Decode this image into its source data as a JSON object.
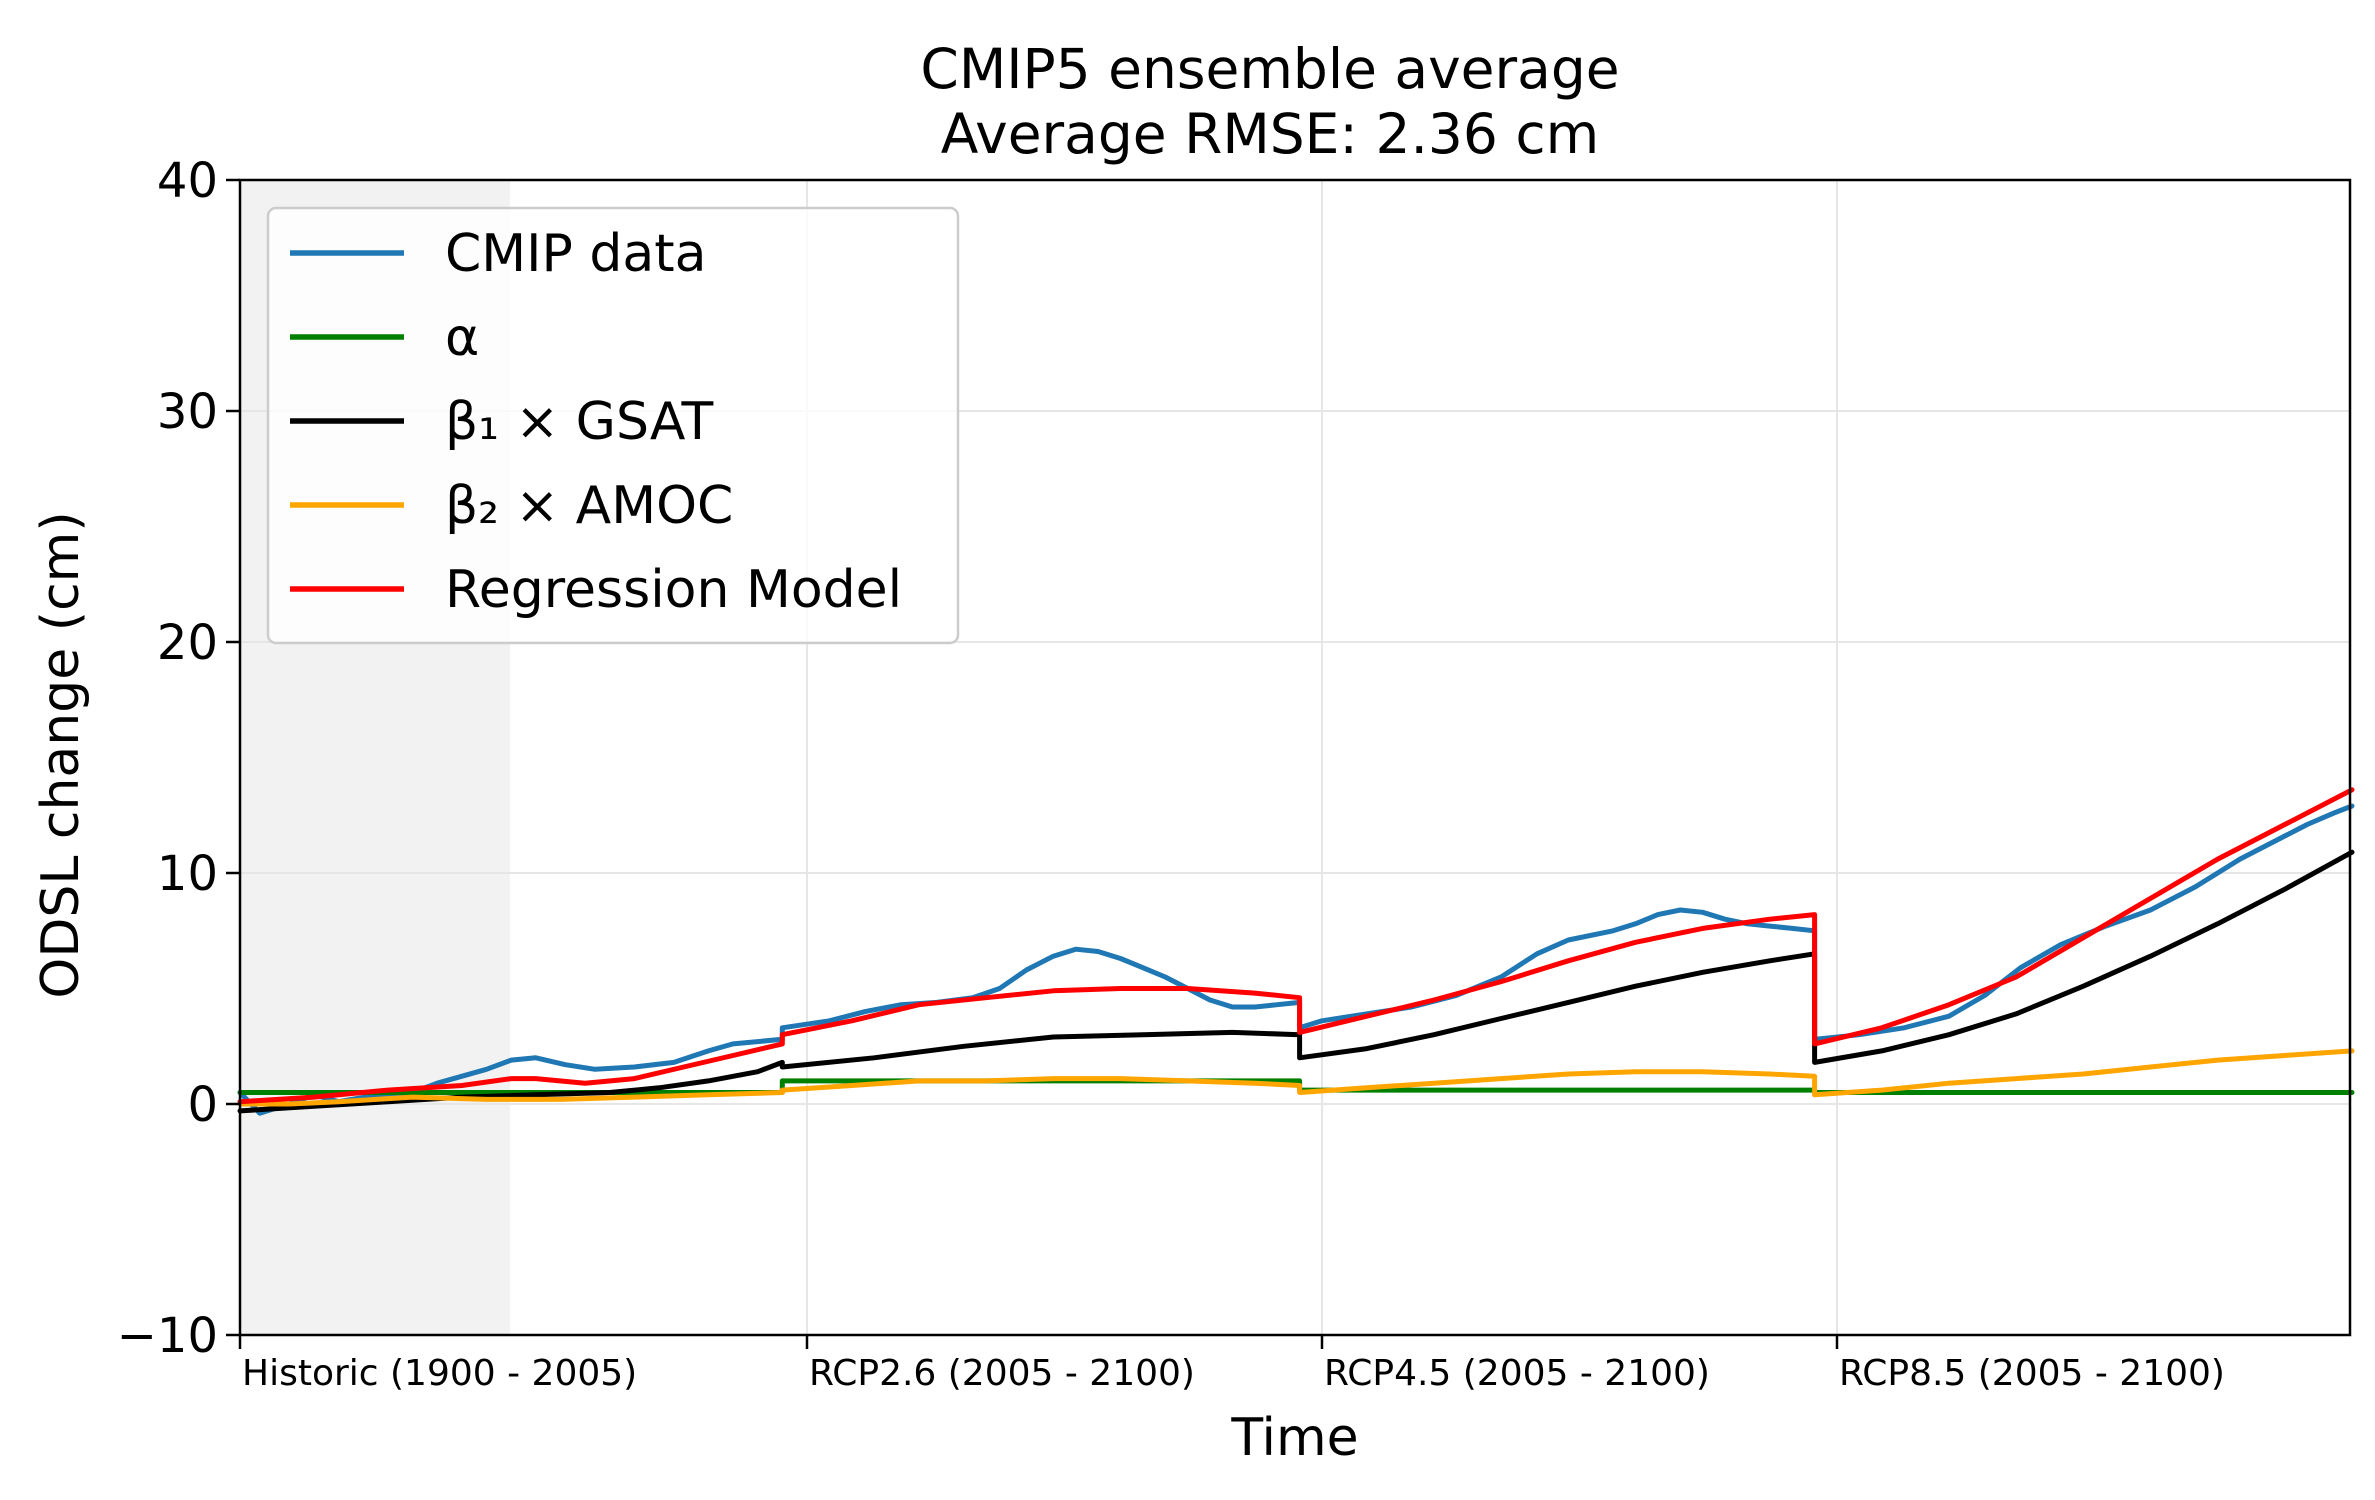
{
  "chart_data": {
    "type": "line",
    "title_line1": "CMIP5 ensemble average",
    "title_line2": "Average RMSE: 2.36 cm",
    "xlabel": "Time",
    "ylabel": "ODSL change (cm)",
    "ylim": [
      -10,
      40
    ],
    "yticks": [
      -10,
      0,
      10,
      20,
      30,
      40
    ],
    "ytick_labels": [
      "−10",
      "0",
      "10",
      "20",
      "30",
      "40"
    ],
    "grid": true,
    "legend_position": "top-left",
    "shaded_region": "Historic (1900 - 2005) reference period",
    "segments": [
      {
        "label": "Historic (1900 - 2005)"
      },
      {
        "label": "RCP2.6 (2005 - 2100)"
      },
      {
        "label": "RCP4.5 (2005 - 2100)"
      },
      {
        "label": "RCP8.5 (2005 - 2100)"
      }
    ],
    "series": [
      {
        "name": "CMIP data",
        "color": "#1f77b4",
        "points": [
          [
            0,
            0.5
          ],
          [
            0.04,
            -0.4
          ],
          [
            0.1,
            0.0
          ],
          [
            0.15,
            0.4
          ],
          [
            0.2,
            0.1
          ],
          [
            0.28,
            0.4
          ],
          [
            0.35,
            0.5
          ],
          [
            0.4,
            0.9
          ],
          [
            0.5,
            1.5
          ],
          [
            0.55,
            1.9
          ],
          [
            0.6,
            2.0
          ],
          [
            0.66,
            1.7
          ],
          [
            0.72,
            1.5
          ],
          [
            0.8,
            1.6
          ],
          [
            0.88,
            1.8
          ],
          [
            0.95,
            2.3
          ],
          [
            1.0,
            2.6
          ],
          [
            1.1,
            2.8
          ],
          [
            1.1,
            3.3
          ],
          [
            1.2,
            3.6
          ],
          [
            1.28,
            4.0
          ],
          [
            1.36,
            4.3
          ],
          [
            1.44,
            4.4
          ],
          [
            1.52,
            4.6
          ],
          [
            1.58,
            5.0
          ],
          [
            1.64,
            5.8
          ],
          [
            1.7,
            6.4
          ],
          [
            1.75,
            6.7
          ],
          [
            1.8,
            6.6
          ],
          [
            1.85,
            6.3
          ],
          [
            1.9,
            5.9
          ],
          [
            1.95,
            5.5
          ],
          [
            2.0,
            5.0
          ],
          [
            2.05,
            4.5
          ],
          [
            2.1,
            4.2
          ],
          [
            2.15,
            4.2
          ],
          [
            2.2,
            4.3
          ],
          [
            2.25,
            4.4
          ],
          [
            2.25,
            3.3
          ],
          [
            2.3,
            3.6
          ],
          [
            2.4,
            3.9
          ],
          [
            2.5,
            4.2
          ],
          [
            2.6,
            4.7
          ],
          [
            2.7,
            5.5
          ],
          [
            2.78,
            6.5
          ],
          [
            2.85,
            7.1
          ],
          [
            2.95,
            7.5
          ],
          [
            3.0,
            7.8
          ],
          [
            3.05,
            8.2
          ],
          [
            3.1,
            8.4
          ],
          [
            3.15,
            8.3
          ],
          [
            3.2,
            8.0
          ],
          [
            3.25,
            7.8
          ],
          [
            3.3,
            7.7
          ],
          [
            3.35,
            7.6
          ],
          [
            3.4,
            7.5
          ],
          [
            3.4,
            2.8
          ],
          [
            3.5,
            3.0
          ],
          [
            3.6,
            3.3
          ],
          [
            3.7,
            3.8
          ],
          [
            3.78,
            4.7
          ],
          [
            3.86,
            5.9
          ],
          [
            3.95,
            6.9
          ],
          [
            4.05,
            7.7
          ],
          [
            4.15,
            8.4
          ],
          [
            4.25,
            9.4
          ],
          [
            4.35,
            10.6
          ],
          [
            4.45,
            11.6
          ],
          [
            4.5,
            12.1
          ],
          [
            4.56,
            12.6
          ],
          [
            4.6,
            12.9
          ]
        ]
      },
      {
        "name": "α",
        "color": "#008000",
        "points": [
          [
            0,
            0.5
          ],
          [
            1.1,
            0.5
          ],
          [
            1.1,
            1.0
          ],
          [
            2.25,
            1.0
          ],
          [
            2.25,
            0.6
          ],
          [
            3.4,
            0.6
          ],
          [
            3.4,
            0.5
          ],
          [
            4.6,
            0.5
          ]
        ]
      },
      {
        "name": "β₁ × GSAT",
        "color": "#000000",
        "points": [
          [
            0,
            -0.3
          ],
          [
            0.15,
            -0.1
          ],
          [
            0.3,
            0.1
          ],
          [
            0.45,
            0.3
          ],
          [
            0.6,
            0.4
          ],
          [
            0.75,
            0.5
          ],
          [
            0.85,
            0.7
          ],
          [
            0.95,
            1.0
          ],
          [
            1.05,
            1.4
          ],
          [
            1.1,
            1.8
          ],
          [
            1.1,
            1.6
          ],
          [
            1.3,
            2.0
          ],
          [
            1.5,
            2.5
          ],
          [
            1.7,
            2.9
          ],
          [
            1.9,
            3.0
          ],
          [
            2.1,
            3.1
          ],
          [
            2.25,
            3.0
          ],
          [
            2.25,
            2.0
          ],
          [
            2.4,
            2.4
          ],
          [
            2.55,
            3.0
          ],
          [
            2.7,
            3.7
          ],
          [
            2.85,
            4.4
          ],
          [
            3.0,
            5.1
          ],
          [
            3.15,
            5.7
          ],
          [
            3.3,
            6.2
          ],
          [
            3.4,
            6.5
          ],
          [
            3.4,
            1.8
          ],
          [
            3.55,
            2.3
          ],
          [
            3.7,
            3.0
          ],
          [
            3.85,
            3.9
          ],
          [
            4.0,
            5.1
          ],
          [
            4.15,
            6.4
          ],
          [
            4.3,
            7.8
          ],
          [
            4.45,
            9.3
          ],
          [
            4.6,
            10.9
          ]
        ]
      },
      {
        "name": "β₂ × AMOC",
        "color": "#ffa500",
        "points": [
          [
            0,
            0.0
          ],
          [
            0.1,
            0.0
          ],
          [
            0.2,
            0.1
          ],
          [
            0.35,
            0.3
          ],
          [
            0.5,
            0.2
          ],
          [
            0.65,
            0.2
          ],
          [
            0.8,
            0.3
          ],
          [
            0.95,
            0.4
          ],
          [
            1.1,
            0.5
          ],
          [
            1.1,
            0.6
          ],
          [
            1.25,
            0.8
          ],
          [
            1.4,
            1.0
          ],
          [
            1.55,
            1.0
          ],
          [
            1.7,
            1.1
          ],
          [
            1.85,
            1.1
          ],
          [
            2.0,
            1.0
          ],
          [
            2.15,
            0.9
          ],
          [
            2.25,
            0.8
          ],
          [
            2.25,
            0.5
          ],
          [
            2.4,
            0.7
          ],
          [
            2.55,
            0.9
          ],
          [
            2.7,
            1.1
          ],
          [
            2.85,
            1.3
          ],
          [
            3.0,
            1.4
          ],
          [
            3.15,
            1.4
          ],
          [
            3.3,
            1.3
          ],
          [
            3.4,
            1.2
          ],
          [
            3.4,
            0.4
          ],
          [
            3.55,
            0.6
          ],
          [
            3.7,
            0.9
          ],
          [
            3.85,
            1.1
          ],
          [
            4.0,
            1.3
          ],
          [
            4.15,
            1.6
          ],
          [
            4.3,
            1.9
          ],
          [
            4.45,
            2.1
          ],
          [
            4.6,
            2.3
          ]
        ]
      },
      {
        "name": "Regression Model",
        "color": "#ff0000",
        "points": [
          [
            0,
            0.1
          ],
          [
            0.15,
            0.3
          ],
          [
            0.3,
            0.6
          ],
          [
            0.45,
            0.8
          ],
          [
            0.55,
            1.1
          ],
          [
            0.6,
            1.1
          ],
          [
            0.7,
            0.9
          ],
          [
            0.8,
            1.1
          ],
          [
            0.9,
            1.6
          ],
          [
            1.0,
            2.1
          ],
          [
            1.1,
            2.6
          ],
          [
            1.1,
            3.0
          ],
          [
            1.25,
            3.6
          ],
          [
            1.4,
            4.3
          ],
          [
            1.55,
            4.6
          ],
          [
            1.7,
            4.9
          ],
          [
            1.85,
            5.0
          ],
          [
            2.0,
            5.0
          ],
          [
            2.15,
            4.8
          ],
          [
            2.25,
            4.6
          ],
          [
            2.25,
            3.1
          ],
          [
            2.4,
            3.8
          ],
          [
            2.55,
            4.5
          ],
          [
            2.7,
            5.3
          ],
          [
            2.85,
            6.2
          ],
          [
            3.0,
            7.0
          ],
          [
            3.15,
            7.6
          ],
          [
            3.3,
            8.0
          ],
          [
            3.4,
            8.2
          ],
          [
            3.4,
            2.6
          ],
          [
            3.55,
            3.3
          ],
          [
            3.7,
            4.3
          ],
          [
            3.85,
            5.5
          ],
          [
            4.0,
            7.2
          ],
          [
            4.15,
            8.9
          ],
          [
            4.3,
            10.6
          ],
          [
            4.45,
            12.1
          ],
          [
            4.6,
            13.6
          ]
        ]
      }
    ]
  }
}
